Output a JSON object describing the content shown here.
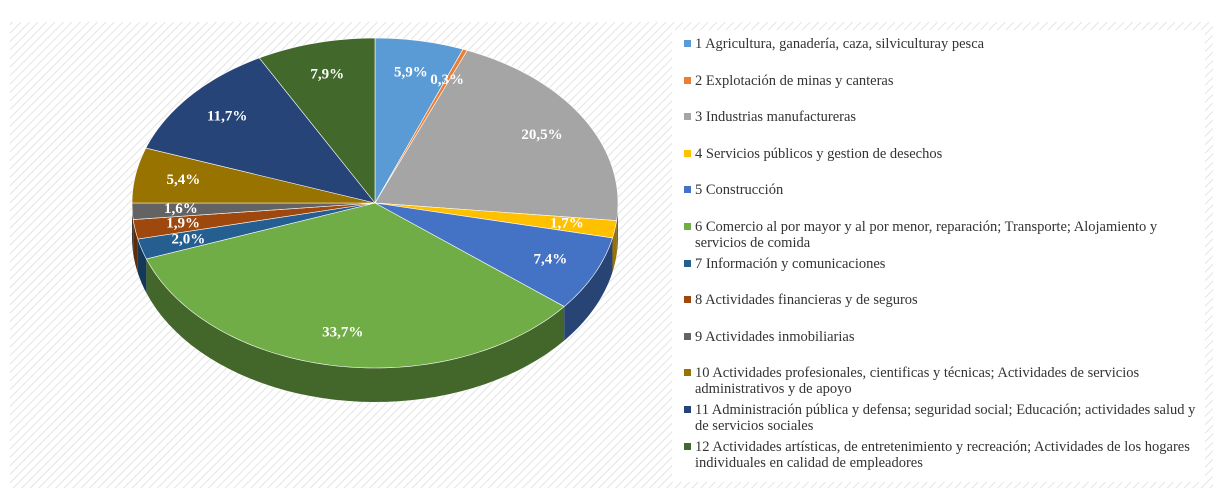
{
  "chart_data": {
    "type": "pie",
    "categories": [
      "1 Agricultura, ganadería, caza, silviculturay pesca",
      "2 Explotación de minas y canteras",
      "3 Industrias manufactureras",
      "4 Servicios públicos y gestion de desechos",
      "5 Construcción",
      "6 Comercio al por mayor y al por menor, reparación; Transporte; Alojamiento y servicios de comida",
      "7 Información y comunicaciones",
      "8 Actividades financieras y de seguros",
      "9 Actividades inmobiliarias",
      "10 Actividades profesionales, cientificas y técnicas; Actividades de servicios administrativos y de apoyo",
      "11 Administración pública y defensa; seguridad social; Educación; actividades salud y de servicios sociales",
      "12 Actividades artísticas, de entretenimiento y recreación; Actividades de los hogares individuales en calidad de empleadores"
    ],
    "values": [
      5.9,
      0.3,
      20.5,
      1.7,
      7.4,
      33.7,
      2.0,
      1.9,
      1.6,
      5.4,
      11.7,
      7.9
    ],
    "value_labels": [
      "5,9%",
      "0,3%",
      "20,5%",
      "1,7%",
      "7,4%",
      "33,7%",
      "2,0%",
      "1,9%",
      "1,6%",
      "5,4%",
      "11,7%",
      "7,9%"
    ],
    "colors": [
      "#5b9bd5",
      "#ed7d31",
      "#a5a5a5",
      "#ffc000",
      "#4472c4",
      "#70ad47",
      "#255e91",
      "#9e480e",
      "#636363",
      "#997300",
      "#264478",
      "#43682b"
    ]
  }
}
